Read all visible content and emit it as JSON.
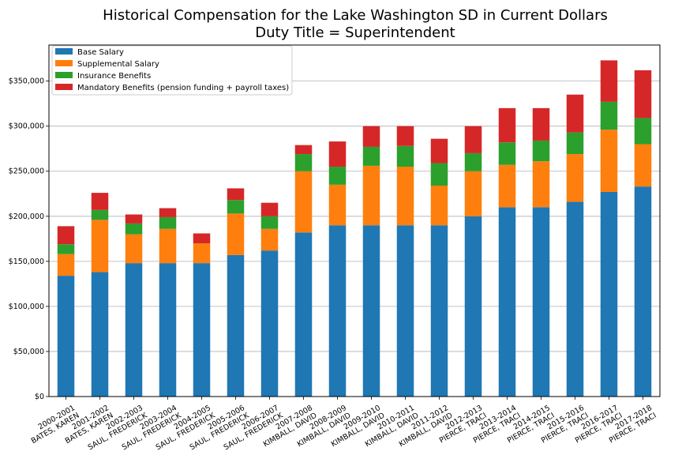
{
  "chart_data": {
    "type": "bar",
    "stacked": true,
    "title": "Historical Compensation for the Lake Washington SD in Current Dollars",
    "subtitle": "Duty Title = Superintendent",
    "xlabel": "",
    "ylabel": "",
    "ylim": [
      0,
      390000
    ],
    "yticks": [
      0,
      50000,
      100000,
      150000,
      200000,
      250000,
      300000,
      350000
    ],
    "ytick_labels": [
      "$0",
      "$50,000",
      "$100,000",
      "$150,000",
      "$200,000",
      "$250,000",
      "$300,000",
      "$350,000"
    ],
    "grid": "horizontal",
    "legend_position": "top-left",
    "categories": [
      [
        "2000-2001",
        "BATES, KAREN"
      ],
      [
        "2001-2002",
        "BATES, KAREN"
      ],
      [
        "2002-2003",
        "SAUL, FREDERICK"
      ],
      [
        "2003-2004",
        "SAUL, FREDERICK"
      ],
      [
        "2004-2005",
        "SAUL, FREDERICK"
      ],
      [
        "2005-2006",
        "SAUL, FREDERICK"
      ],
      [
        "2006-2007",
        "SAUL, FREDERICK"
      ],
      [
        "2007-2008",
        "KIMBALL, DAVID"
      ],
      [
        "2008-2009",
        "KIMBALL, DAVID"
      ],
      [
        "2009-2010",
        "KIMBALL, DAVID"
      ],
      [
        "2010-2011",
        "KIMBALL, DAVID"
      ],
      [
        "2011-2012",
        "KIMBALL, DAVID"
      ],
      [
        "2012-2013",
        "PIERCE, TRACI"
      ],
      [
        "2013-2014",
        "PIERCE, TRACI"
      ],
      [
        "2014-2015",
        "PIERCE, TRACI"
      ],
      [
        "2015-2016",
        "PIERCE, TRACI"
      ],
      [
        "2016-2017",
        "PIERCE, TRACI"
      ],
      [
        "2017-2018",
        "PIERCE, TRACI"
      ]
    ],
    "series": [
      {
        "name": "Base Salary",
        "color": "#1f77b4",
        "values": [
          134000,
          138000,
          148000,
          148000,
          148000,
          157000,
          162000,
          182000,
          190000,
          190000,
          190000,
          190000,
          200000,
          210000,
          210000,
          216000,
          227000,
          233000
        ]
      },
      {
        "name": "Supplemental Salary",
        "color": "#ff7f0e",
        "values": [
          24000,
          58000,
          32000,
          38000,
          22000,
          46000,
          24000,
          68000,
          45000,
          66000,
          65000,
          44000,
          50000,
          47000,
          51000,
          53000,
          69000,
          47000
        ]
      },
      {
        "name": "Insurance Benefits",
        "color": "#2ca02c",
        "values": [
          11000,
          11000,
          12000,
          13000,
          0,
          15000,
          14000,
          19000,
          20000,
          21000,
          23000,
          25000,
          20000,
          25000,
          23000,
          24000,
          31000,
          29000
        ]
      },
      {
        "name": "Mandatory Benefits (pension funding + payroll taxes)",
        "color": "#d62728",
        "values": [
          20000,
          19000,
          10000,
          10000,
          11000,
          13000,
          15000,
          10000,
          28000,
          23000,
          22000,
          27000,
          30000,
          38000,
          36000,
          42000,
          46000,
          53000
        ]
      }
    ]
  }
}
